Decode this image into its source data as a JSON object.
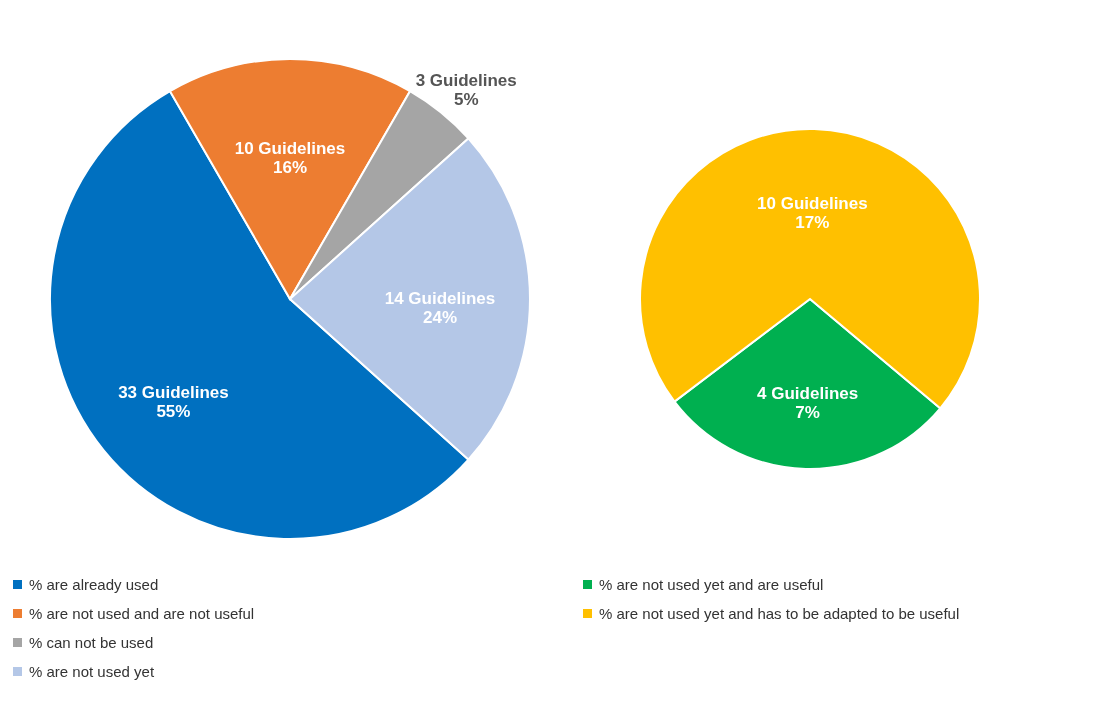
{
  "chart_data": [
    {
      "type": "pie",
      "categories": [
        "% are already used",
        "% are not used and are not useful",
        "% can not be used",
        "% are not used yet"
      ],
      "values": [
        33,
        10,
        3,
        14
      ],
      "colors": [
        "#0070c0",
        "#ed7d31",
        "#a5a5a5",
        "#b4c7e7"
      ],
      "value_labels": [
        "33 Guidelines\n55%",
        "10 Guidelines\n16%",
        "3 Guidelines\n5%",
        "14 Guidelines\n24%"
      ],
      "legend": "bottom"
    },
    {
      "type": "pie",
      "categories": [
        "% are not used yet and are useful",
        "% are not used yet and has to be adapted to be useful"
      ],
      "values": [
        4,
        10
      ],
      "colors": [
        "#00b050",
        "#ffc000"
      ],
      "value_labels": [
        "4 Guidelines\n7%",
        "10 Guidelines\n17%"
      ],
      "legend": "bottom"
    }
  ]
}
